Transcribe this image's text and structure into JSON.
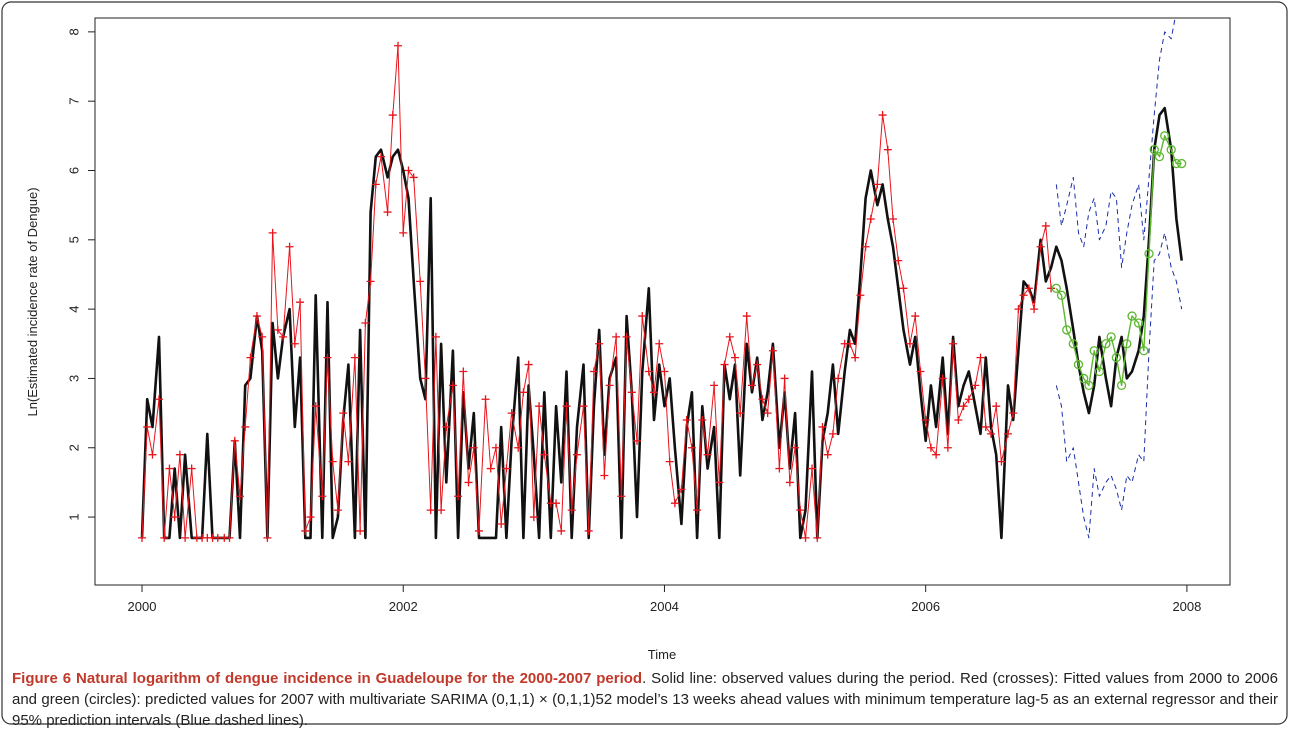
{
  "chart_data": {
    "type": "line",
    "caption_bold": "Figure 6 Natural logarithm of dengue incidence in Guadeloupe for the 2000-2007 period",
    "caption": ". Solid line: observed values during the period. Red (crosses): Fitted values from 2000 to 2006 and green (circles): predicted values for 2007 with multivariate SARIMA (0,1,1) × (0,1,1)52 model’s 13 weeks ahead values with minimum temperature lag-5 as an external regressor and their 95% prediction intervals (Blue dashed lines).",
    "xlabel": "Time",
    "ylabel": "Ln(Estimated incidence rate of Dengue)",
    "xlim": [
      1999.64,
      2008.33
    ],
    "xticks": [
      2000,
      2002,
      2004,
      2006,
      2008
    ],
    "ylim": [
      0.02,
      8.2
    ],
    "yticks": [
      1,
      2,
      3,
      4,
      5,
      6,
      7,
      8
    ],
    "x": [
      2000,
      2000.04,
      2000.08,
      2000.13,
      2000.17,
      2000.21,
      2000.25,
      2000.29,
      2000.33,
      2000.38,
      2000.42,
      2000.46,
      2000.5,
      2000.54,
      2000.58,
      2000.63,
      2000.67,
      2000.71,
      2000.75,
      2000.79,
      2000.83,
      2000.88,
      2000.92,
      2000.96,
      2001,
      2001.04,
      2001.08,
      2001.13,
      2001.17,
      2001.21,
      2001.25,
      2001.29,
      2001.33,
      2001.38,
      2001.42,
      2001.46,
      2001.5,
      2001.54,
      2001.58,
      2001.63,
      2001.67,
      2001.71,
      2001.75,
      2001.79,
      2001.83,
      2001.88,
      2001.92,
      2001.96,
      2002,
      2002.04,
      2002.08,
      2002.13,
      2002.17,
      2002.21,
      2002.25,
      2002.29,
      2002.33,
      2002.38,
      2002.42,
      2002.46,
      2002.5,
      2002.54,
      2002.58,
      2002.63,
      2002.67,
      2002.71,
      2002.75,
      2002.79,
      2002.83,
      2002.88,
      2002.92,
      2002.96,
      2003,
      2003.04,
      2003.08,
      2003.13,
      2003.17,
      2003.21,
      2003.25,
      2003.29,
      2003.33,
      2003.38,
      2003.42,
      2003.46,
      2003.5,
      2003.54,
      2003.58,
      2003.63,
      2003.67,
      2003.71,
      2003.75,
      2003.79,
      2003.83,
      2003.88,
      2003.92,
      2003.96,
      2004,
      2004.04,
      2004.08,
      2004.13,
      2004.17,
      2004.21,
      2004.25,
      2004.29,
      2004.33,
      2004.38,
      2004.42,
      2004.46,
      2004.5,
      2004.54,
      2004.58,
      2004.63,
      2004.67,
      2004.71,
      2004.75,
      2004.79,
      2004.83,
      2004.88,
      2004.92,
      2004.96,
      2005,
      2005.04,
      2005.08,
      2005.13,
      2005.17,
      2005.21,
      2005.25,
      2005.29,
      2005.33,
      2005.38,
      2005.42,
      2005.46,
      2005.5,
      2005.54,
      2005.58,
      2005.63,
      2005.67,
      2005.71,
      2005.75,
      2005.79,
      2005.83,
      2005.88,
      2005.92,
      2005.96,
      2006,
      2006.04,
      2006.08,
      2006.13,
      2006.17,
      2006.21,
      2006.25,
      2006.29,
      2006.33,
      2006.38,
      2006.42,
      2006.46,
      2006.5,
      2006.54,
      2006.58,
      2006.63,
      2006.67,
      2006.71,
      2006.75,
      2006.79,
      2006.83,
      2006.88,
      2006.92,
      2006.96,
      2007,
      2007.04,
      2007.08,
      2007.13,
      2007.17,
      2007.21,
      2007.25,
      2007.29,
      2007.33,
      2007.38,
      2007.42,
      2007.46,
      2007.5,
      2007.54,
      2007.58,
      2007.63,
      2007.67,
      2007.71,
      2007.75,
      2007.79,
      2007.83,
      2007.88,
      2007.92,
      2007.96
    ],
    "series": [
      {
        "color": "#111111",
        "width": 2.6,
        "values": [
          0.7,
          2.7,
          2.3,
          3.6,
          0.7,
          0.7,
          1.7,
          0.7,
          1.9,
          0.7,
          0.7,
          0.7,
          2.2,
          0.7,
          0.7,
          0.7,
          0.7,
          2.1,
          0.7,
          2.9,
          3.0,
          3.9,
          3.4,
          0.7,
          3.8,
          3.0,
          3.6,
          4.0,
          2.3,
          3.3,
          0.7,
          0.7,
          4.2,
          0.7,
          4.1,
          0.7,
          1.0,
          2.4,
          3.2,
          0.7,
          3.7,
          0.7,
          5.4,
          6.2,
          6.3,
          5.9,
          6.2,
          6.3,
          6.0,
          5.6,
          4.4,
          3.0,
          2.7,
          5.6,
          0.7,
          3.5,
          1.5,
          3.4,
          0.7,
          2.8,
          1.7,
          2.5,
          0.7,
          0.7,
          0.7,
          0.7,
          2.3,
          0.7,
          2.1,
          3.3,
          0.7,
          2.9,
          1.9,
          0.7,
          2.8,
          0.7,
          2.6,
          1.5,
          3.1,
          0.7,
          2.3,
          3.2,
          0.7,
          2.6,
          3.7,
          1.9,
          3.0,
          3.3,
          0.7,
          3.9,
          2.8,
          1.0,
          3.1,
          4.3,
          2.4,
          3.2,
          2.6,
          3.0,
          2.0,
          0.9,
          2.3,
          2.8,
          0.7,
          2.6,
          1.7,
          2.3,
          0.7,
          3.2,
          2.7,
          3.2,
          1.6,
          3.5,
          2.8,
          3.3,
          2.4,
          2.8,
          3.5,
          2.0,
          2.8,
          1.7,
          2.5,
          0.7,
          1.1,
          3.1,
          0.7,
          2.1,
          2.5,
          3.2,
          2.2,
          3.1,
          3.7,
          3.5,
          4.5,
          5.6,
          6.0,
          5.5,
          5.8,
          5.3,
          4.9,
          4.3,
          3.7,
          3.2,
          3.6,
          2.8,
          2.1,
          2.9,
          2.3,
          3.3,
          2.2,
          3.6,
          2.6,
          2.9,
          3.1,
          2.6,
          2.2,
          3.3,
          2.3,
          1.9,
          0.7,
          2.9,
          2.4,
          3.4,
          4.4,
          4.3,
          4.1,
          5.0,
          4.4,
          4.6,
          4.9,
          4.7,
          4.3,
          3.7,
          3.2,
          2.8,
          2.5,
          2.9,
          3.6,
          3.0,
          2.6,
          3.3,
          3.6,
          3.0,
          3.1,
          3.4,
          3.9,
          5.0,
          6.3,
          6.8,
          6.9,
          6.3,
          5.3,
          4.7
        ]
      },
      {
        "color": "#e8141b",
        "width": 1,
        "marker": "cross",
        "values": [
          0.7,
          2.3,
          1.9,
          2.7,
          0.7,
          1.7,
          1.0,
          1.9,
          0.7,
          1.7,
          0.7,
          0.7,
          0.7,
          0.7,
          0.7,
          0.7,
          0.7,
          2.1,
          1.3,
          2.3,
          3.3,
          3.9,
          3.6,
          0.7,
          5.1,
          3.7,
          3.6,
          4.9,
          3.5,
          4.1,
          0.8,
          1.0,
          2.6,
          1.3,
          3.3,
          1.8,
          1.1,
          2.5,
          1.8,
          3.3,
          0.8,
          3.8,
          4.4,
          5.8,
          6.2,
          5.4,
          6.8,
          7.8,
          5.1,
          6.0,
          5.9,
          4.4,
          3.0,
          1.1,
          3.6,
          1.1,
          2.3,
          2.9,
          1.3,
          3.1,
          1.5,
          2.0,
          0.8,
          2.7,
          1.7,
          2.0,
          0.9,
          1.7,
          2.5,
          2.0,
          2.8,
          3.2,
          1.0,
          2.6,
          1.9,
          1.2,
          1.2,
          0.8,
          2.6,
          1.1,
          1.9,
          2.6,
          0.8,
          3.1,
          3.5,
          1.6,
          2.9,
          3.6,
          1.3,
          3.6,
          2.8,
          2.1,
          3.9,
          3.1,
          2.8,
          3.5,
          3.1,
          1.8,
          1.2,
          1.4,
          2.4,
          2.0,
          1.1,
          2.4,
          1.9,
          2.9,
          1.5,
          3.2,
          3.6,
          3.3,
          2.5,
          3.9,
          2.9,
          3.2,
          2.7,
          2.5,
          3.4,
          1.7,
          3.0,
          1.5,
          2.0,
          1.1,
          0.7,
          1.7,
          0.7,
          2.3,
          1.9,
          2.2,
          3.0,
          3.5,
          3.5,
          3.3,
          4.2,
          4.9,
          5.3,
          5.8,
          6.8,
          6.3,
          5.3,
          4.7,
          4.3,
          3.5,
          3.9,
          3.1,
          2.4,
          2.0,
          1.9,
          3.0,
          2.0,
          3.5,
          2.4,
          2.6,
          2.7,
          2.9,
          3.3,
          2.3,
          2.2,
          2.6,
          1.8,
          2.2,
          2.5,
          4.0,
          4.2,
          4.3,
          4.0,
          4.9,
          5.2,
          4.3,
          null,
          null,
          null,
          null,
          null,
          null,
          null,
          null,
          null,
          null,
          null,
          null,
          null,
          null,
          null,
          null,
          null,
          null,
          null,
          null,
          null,
          null,
          null,
          null
        ]
      },
      {
        "color": "#5cb82e",
        "width": 1.4,
        "marker": "circle",
        "values": [
          null,
          null,
          null,
          null,
          null,
          null,
          null,
          null,
          null,
          null,
          null,
          null,
          null,
          null,
          null,
          null,
          null,
          null,
          null,
          null,
          null,
          null,
          null,
          null,
          null,
          null,
          null,
          null,
          null,
          null,
          null,
          null,
          null,
          null,
          null,
          null,
          null,
          null,
          null,
          null,
          null,
          null,
          null,
          null,
          null,
          null,
          null,
          null,
          null,
          null,
          null,
          null,
          null,
          null,
          null,
          null,
          null,
          null,
          null,
          null,
          null,
          null,
          null,
          null,
          null,
          null,
          null,
          null,
          null,
          null,
          null,
          null,
          null,
          null,
          null,
          null,
          null,
          null,
          null,
          null,
          null,
          null,
          null,
          null,
          null,
          null,
          null,
          null,
          null,
          null,
          null,
          null,
          null,
          null,
          null,
          null,
          null,
          null,
          null,
          null,
          null,
          null,
          null,
          null,
          null,
          null,
          null,
          null,
          null,
          null,
          null,
          null,
          null,
          null,
          null,
          null,
          null,
          null,
          null,
          null,
          null,
          null,
          null,
          null,
          null,
          null,
          null,
          null,
          null,
          null,
          null,
          null,
          null,
          null,
          null,
          null,
          null,
          null,
          null,
          null,
          null,
          null,
          null,
          null,
          null,
          null,
          null,
          null,
          null,
          null,
          null,
          null,
          null,
          null,
          null,
          null,
          null,
          null,
          null,
          null,
          null,
          null,
          null,
          null,
          null,
          null,
          null,
          null,
          4.3,
          4.2,
          3.7,
          3.5,
          3.2,
          3.0,
          2.9,
          3.4,
          3.1,
          3.5,
          3.6,
          3.3,
          2.9,
          3.5,
          3.9,
          3.8,
          3.4,
          4.8,
          6.3,
          6.2,
          6.5,
          6.3,
          6.1,
          6.1
        ]
      },
      {
        "color": "#1a2ea8",
        "width": 1,
        "dashed": true,
        "values": [
          null,
          null,
          null,
          null,
          null,
          null,
          null,
          null,
          null,
          null,
          null,
          null,
          null,
          null,
          null,
          null,
          null,
          null,
          null,
          null,
          null,
          null,
          null,
          null,
          null,
          null,
          null,
          null,
          null,
          null,
          null,
          null,
          null,
          null,
          null,
          null,
          null,
          null,
          null,
          null,
          null,
          null,
          null,
          null,
          null,
          null,
          null,
          null,
          null,
          null,
          null,
          null,
          null,
          null,
          null,
          null,
          null,
          null,
          null,
          null,
          null,
          null,
          null,
          null,
          null,
          null,
          null,
          null,
          null,
          null,
          null,
          null,
          null,
          null,
          null,
          null,
          null,
          null,
          null,
          null,
          null,
          null,
          null,
          null,
          null,
          null,
          null,
          null,
          null,
          null,
          null,
          null,
          null,
          null,
          null,
          null,
          null,
          null,
          null,
          null,
          null,
          null,
          null,
          null,
          null,
          null,
          null,
          null,
          null,
          null,
          null,
          null,
          null,
          null,
          null,
          null,
          null,
          null,
          null,
          null,
          null,
          null,
          null,
          null,
          null,
          null,
          null,
          null,
          null,
          null,
          null,
          null,
          null,
          null,
          null,
          null,
          null,
          null,
          null,
          null,
          null,
          null,
          null,
          null,
          null,
          null,
          null,
          null,
          null,
          null,
          null,
          null,
          null,
          null,
          null,
          null,
          null,
          null,
          null,
          null,
          null,
          null,
          null,
          null,
          null,
          null,
          null,
          null,
          5.8,
          5.2,
          5.5,
          5.9,
          5.1,
          4.9,
          5.4,
          5.6,
          5.0,
          5.2,
          5.7,
          5.6,
          4.6,
          5.1,
          5.5,
          5.8,
          5.0,
          5.9,
          6.8,
          7.6,
          8.0,
          7.9,
          8.3,
          8.3
        ]
      },
      {
        "color": "#1a2ea8",
        "width": 1,
        "dashed": true,
        "values": [
          null,
          null,
          null,
          null,
          null,
          null,
          null,
          null,
          null,
          null,
          null,
          null,
          null,
          null,
          null,
          null,
          null,
          null,
          null,
          null,
          null,
          null,
          null,
          null,
          null,
          null,
          null,
          null,
          null,
          null,
          null,
          null,
          null,
          null,
          null,
          null,
          null,
          null,
          null,
          null,
          null,
          null,
          null,
          null,
          null,
          null,
          null,
          null,
          null,
          null,
          null,
          null,
          null,
          null,
          null,
          null,
          null,
          null,
          null,
          null,
          null,
          null,
          null,
          null,
          null,
          null,
          null,
          null,
          null,
          null,
          null,
          null,
          null,
          null,
          null,
          null,
          null,
          null,
          null,
          null,
          null,
          null,
          null,
          null,
          null,
          null,
          null,
          null,
          null,
          null,
          null,
          null,
          null,
          null,
          null,
          null,
          null,
          null,
          null,
          null,
          null,
          null,
          null,
          null,
          null,
          null,
          null,
          null,
          null,
          null,
          null,
          null,
          null,
          null,
          null,
          null,
          null,
          null,
          null,
          null,
          null,
          null,
          null,
          null,
          null,
          null,
          null,
          null,
          null,
          null,
          null,
          null,
          null,
          null,
          null,
          null,
          null,
          null,
          null,
          null,
          null,
          null,
          null,
          null,
          null,
          null,
          null,
          null,
          null,
          null,
          null,
          null,
          null,
          null,
          null,
          null,
          null,
          null,
          null,
          null,
          null,
          null,
          null,
          null,
          null,
          null,
          null,
          null,
          2.9,
          2.6,
          1.8,
          2.0,
          1.5,
          1.0,
          0.7,
          1.7,
          1.3,
          1.5,
          1.6,
          1.4,
          1.1,
          1.6,
          1.5,
          1.9,
          1.8,
          3.4,
          4.7,
          4.8,
          5.1,
          4.6,
          4.4,
          4.0
        ]
      }
    ]
  }
}
